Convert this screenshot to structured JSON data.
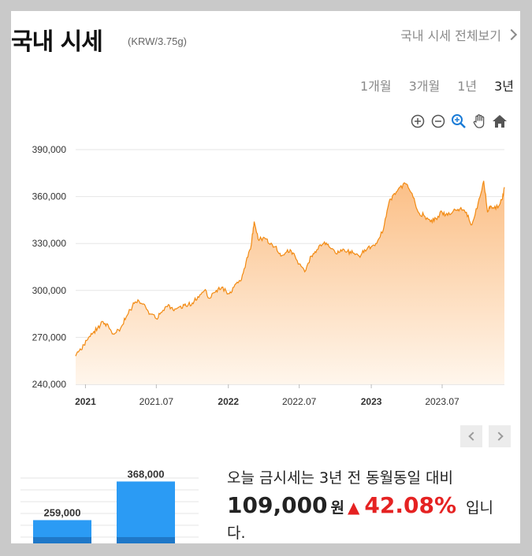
{
  "header": {
    "title": "국내 시세",
    "unit": "(KRW/3.75g)",
    "more_link": "국내 시세 전체보기"
  },
  "periods": [
    {
      "label": "1개월",
      "active": false
    },
    {
      "label": "3개월",
      "active": false
    },
    {
      "label": "1년",
      "active": false
    },
    {
      "label": "3년",
      "active": true
    }
  ],
  "tools": [
    "zoom-in-icon",
    "zoom-out-icon",
    "magnify-icon",
    "pan-hand-icon",
    "home-icon"
  ],
  "colors": {
    "line": "#f28a12",
    "area_top": "#fbbf86",
    "area_bottom": "#fff6ec",
    "bar": "#2b9bf4",
    "bar_dark": "#1f78c8",
    "up": "#e52222"
  },
  "chart_data": {
    "type": "area",
    "ylim": [
      240000,
      390000
    ],
    "yticks": [
      240000,
      270000,
      300000,
      330000,
      360000,
      390000
    ],
    "ytick_labels": [
      "240,000",
      "270,000",
      "300,000",
      "330,000",
      "360,000",
      "390,000"
    ],
    "xlim": [
      "2020-12-07",
      "2023-12-07"
    ],
    "xticks": [
      {
        "date": "2021-01-01",
        "label": "2021",
        "bold": true
      },
      {
        "date": "2021-07-01",
        "label": "2021.07",
        "bold": false
      },
      {
        "date": "2022-01-01",
        "label": "2022",
        "bold": true
      },
      {
        "date": "2022-07-01",
        "label": "2022.07",
        "bold": false
      },
      {
        "date": "2023-01-01",
        "label": "2023",
        "bold": true
      },
      {
        "date": "2023-07-01",
        "label": "2023.07",
        "bold": false
      }
    ],
    "grid": true,
    "series": [
      {
        "x": [
          "2020-12-07",
          "2020-12-21",
          "2021-01-04",
          "2021-01-18",
          "2021-02-01",
          "2021-02-15",
          "2021-03-01",
          "2021-03-15",
          "2021-04-01",
          "2021-04-15",
          "2021-05-01",
          "2021-05-15",
          "2021-06-01",
          "2021-06-15",
          "2021-07-01",
          "2021-07-15",
          "2021-08-01",
          "2021-08-15",
          "2021-09-01",
          "2021-09-15",
          "2021-10-01",
          "2021-10-15",
          "2021-11-01",
          "2021-11-15",
          "2021-12-01",
          "2021-12-15",
          "2022-01-01",
          "2022-01-15",
          "2022-02-01",
          "2022-02-15",
          "2022-03-01",
          "2022-03-08",
          "2022-03-20",
          "2022-04-01",
          "2022-04-15",
          "2022-05-01",
          "2022-05-15",
          "2022-06-01",
          "2022-06-15",
          "2022-07-01",
          "2022-07-15",
          "2022-08-01",
          "2022-08-15",
          "2022-09-01",
          "2022-09-15",
          "2022-10-01",
          "2022-10-15",
          "2022-11-01",
          "2022-11-15",
          "2022-12-01",
          "2022-12-15",
          "2023-01-01",
          "2023-01-15",
          "2023-02-01",
          "2023-02-15",
          "2023-03-01",
          "2023-03-15",
          "2023-04-01",
          "2023-04-15",
          "2023-05-01",
          "2023-05-15",
          "2023-06-01",
          "2023-06-15",
          "2023-07-01",
          "2023-07-15",
          "2023-08-01",
          "2023-08-15",
          "2023-09-01",
          "2023-09-15",
          "2023-10-01",
          "2023-10-15",
          "2023-10-25",
          "2023-11-01",
          "2023-11-15",
          "2023-12-01",
          "2023-12-07"
        ],
        "y": [
          258000,
          262000,
          268000,
          272000,
          276000,
          280000,
          277000,
          272000,
          276000,
          283000,
          290000,
          294000,
          291000,
          285000,
          282000,
          286000,
          291000,
          287000,
          290000,
          290000,
          292000,
          296000,
          300000,
          295000,
          300000,
          302000,
          298000,
          302000,
          306000,
          318000,
          330000,
          344000,
          332000,
          334000,
          330000,
          328000,
          322000,
          326000,
          324000,
          317000,
          312000,
          322000,
          326000,
          330000,
          328000,
          324000,
          326000,
          325000,
          324000,
          322000,
          326000,
          328000,
          330000,
          339000,
          356000,
          362000,
          366000,
          368000,
          362000,
          350000,
          348000,
          344000,
          346000,
          350000,
          348000,
          352000,
          352000,
          350000,
          342000,
          356000,
          370000,
          350000,
          354000,
          352000,
          358000,
          366000
        ]
      }
    ]
  },
  "mini_chart": {
    "type": "bar",
    "values": [
      259000,
      368000
    ],
    "value_labels": [
      "259,000",
      "368,000"
    ],
    "categories": [
      "",
      ""
    ]
  },
  "summary": {
    "line1": "오늘 금시세는 3년 전 동월동일 대비",
    "amount": "109,000",
    "amount_unit": "원",
    "arrow": "▲",
    "percent": "42.08%",
    "tail": "입니다."
  }
}
